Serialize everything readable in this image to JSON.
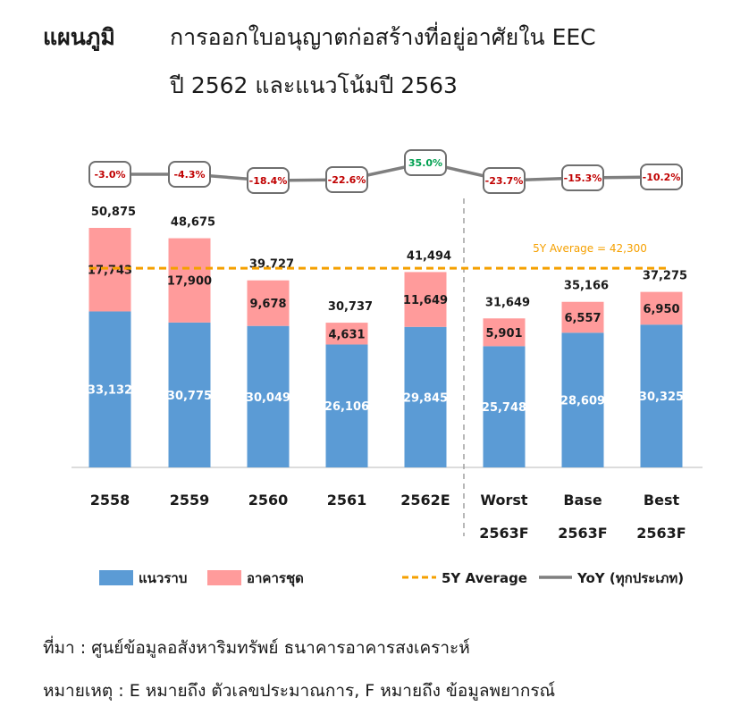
{
  "header": {
    "label": "แผนภูมิ",
    "title_line1": "การออกใบอนุญาตก่อสร้างที่อยู่อาศัยใน EEC",
    "title_line2": "ปี 2562 และแนวโน้มปี 2563"
  },
  "chart_data": {
    "type": "bar",
    "stacked": true,
    "categories": [
      [
        "2558"
      ],
      [
        "2559"
      ],
      [
        "2560"
      ],
      [
        "2561"
      ],
      [
        "2562E"
      ],
      [
        "Worst",
        "2563F"
      ],
      [
        "Base",
        "2563F"
      ],
      [
        "Best",
        "2563F"
      ]
    ],
    "series": [
      {
        "name": "แนวราบ",
        "color": "#5b9bd5",
        "values": [
          33132,
          30775,
          30049,
          26106,
          29845,
          25748,
          28609,
          30325
        ]
      },
      {
        "name": "อาคารชุด",
        "color": "#ff9b9b",
        "values": [
          17743,
          17900,
          9678,
          4631,
          11649,
          5901,
          6557,
          6950
        ]
      }
    ],
    "value_labels": {
      "lowrise": [
        "33,132",
        "30,775",
        "30,049",
        "26,106",
        "29,845",
        "25,748",
        "28,609",
        "30,325"
      ],
      "condo": [
        "17,743",
        "17,900",
        "9,678",
        "4,631",
        "11,649",
        "5,901",
        "6,557",
        "6,950"
      ],
      "totals": [
        "50,875",
        "48,675",
        "39,727",
        "30,737",
        "41,494",
        "31,649",
        "35,166",
        "37,275"
      ]
    },
    "yoy": {
      "name": "YoY (ทุกประเภท)",
      "labels": [
        "-3.0%",
        "-4.3%",
        "-18.4%",
        "-22.6%",
        "35.0%",
        "-23.7%",
        "-15.3%",
        "-10.2%"
      ],
      "values": [
        -3.0,
        -4.3,
        -18.4,
        -22.6,
        35.0,
        -23.7,
        -15.3,
        -10.2
      ],
      "negative_color": "#c00000",
      "positive_color": "#00a050",
      "line_color": "#7f7f7f"
    },
    "average": {
      "name": "5Y Average",
      "value": 42300,
      "label": "5Y Average =  42,300",
      "color": "#f5a000"
    },
    "ylim": [
      0,
      60000
    ],
    "grid": false,
    "legend_position": "bottom"
  },
  "footer": {
    "source": "ที่มา : ศูนย์ข้อมูลอสังหาริมทรัพย์ ธนาคารอาคารสงเคราะห์",
    "note": "หมายเหตุ : E หมายถึง ตัวเลขประมาณการ, F หมายถึง ข้อมูลพยากรณ์"
  }
}
